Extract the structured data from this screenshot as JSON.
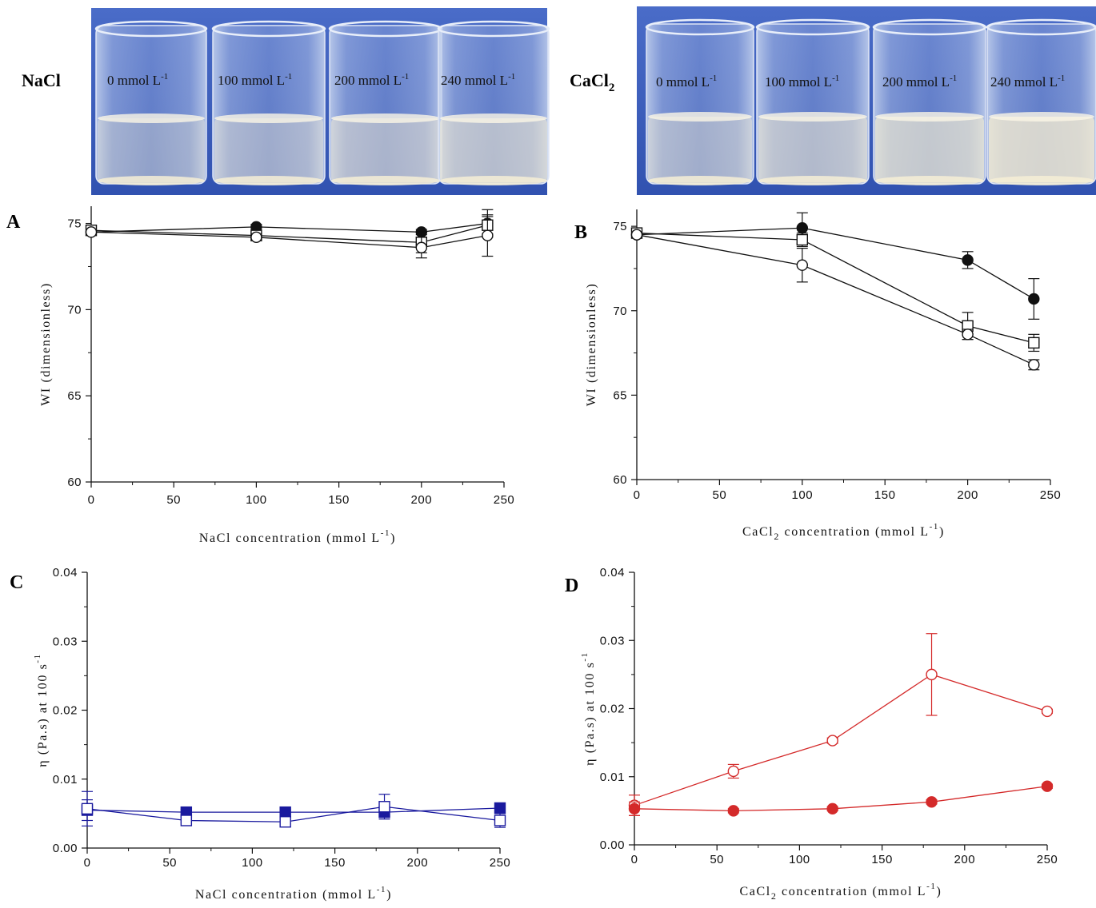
{
  "photos": [
    {
      "label": "NaCl",
      "beakers": [
        {
          "value": "0",
          "unit": "mmol L",
          "exp": "-1"
        },
        {
          "value": "100",
          "unit": "mmol L",
          "exp": "-1"
        },
        {
          "value": "200",
          "unit": "mmol L",
          "exp": "-1"
        },
        {
          "value": "240",
          "unit": "mmol L",
          "exp": "-1"
        }
      ]
    },
    {
      "label": "CaCl",
      "label_sub": "2",
      "beakers": [
        {
          "value": "0",
          "unit": "mmol L",
          "exp": "-1"
        },
        {
          "value": "100",
          "unit": "mmol L",
          "exp": "-1"
        },
        {
          "value": "200",
          "unit": "mmol L",
          "exp": "-1"
        },
        {
          "value": "240",
          "unit": "mmol L",
          "exp": "-1"
        }
      ]
    }
  ],
  "colors": {
    "background_photo": "#3d5fc0",
    "black": "#111111",
    "blue": "#1a1a9e",
    "red": "#d42a2a"
  },
  "chart_data": [
    {
      "panel": "A",
      "type": "line",
      "xlabel": "NaCl concentration (mmol L",
      "xlabel_sup": "-1",
      "xlabel_tail": ")",
      "ylabel": "WI (dimensionless)",
      "xlim": [
        0,
        250
      ],
      "ylim": [
        60,
        76
      ],
      "xticks": [
        0,
        50,
        100,
        150,
        200,
        250
      ],
      "yticks": [
        60,
        65,
        70,
        75
      ],
      "color": "black",
      "series": [
        {
          "marker": "filled-circle",
          "x": [
            0,
            100,
            200,
            240
          ],
          "y": [
            74.5,
            74.8,
            74.5,
            75.0
          ],
          "err": [
            0.15,
            0.15,
            0.15,
            0.8
          ]
        },
        {
          "marker": "open-square",
          "x": [
            0,
            100,
            200,
            240
          ],
          "y": [
            74.6,
            74.3,
            73.9,
            74.9
          ],
          "err": [
            0.15,
            0.2,
            0.6,
            0.5
          ]
        },
        {
          "marker": "open-circle",
          "x": [
            0,
            100,
            200,
            240
          ],
          "y": [
            74.5,
            74.2,
            73.6,
            74.3
          ],
          "err": [
            0.15,
            0.2,
            0.6,
            1.2
          ]
        }
      ]
    },
    {
      "panel": "B",
      "type": "line",
      "xlabel": "CaCl",
      "xlabel_sub": "2",
      "xlabel_rest": " concentration (mmol L",
      "xlabel_sup": "-1",
      "xlabel_tail": ")",
      "ylabel": "WI (dimensionless)",
      "xlim": [
        0,
        250
      ],
      "ylim": [
        60,
        76
      ],
      "xticks": [
        0,
        50,
        100,
        150,
        200,
        250
      ],
      "yticks": [
        60,
        65,
        70,
        75
      ],
      "color": "black",
      "series": [
        {
          "marker": "filled-circle",
          "x": [
            0,
            100,
            200,
            240
          ],
          "y": [
            74.5,
            74.9,
            73.0,
            70.7
          ],
          "err": [
            0.15,
            0.9,
            0.5,
            1.2
          ]
        },
        {
          "marker": "open-square",
          "x": [
            0,
            100,
            200,
            240
          ],
          "y": [
            74.6,
            74.2,
            69.1,
            68.1
          ],
          "err": [
            0.15,
            0.4,
            0.8,
            0.5
          ]
        },
        {
          "marker": "open-circle",
          "x": [
            0,
            100,
            200,
            240
          ],
          "y": [
            74.5,
            72.7,
            68.6,
            66.8
          ],
          "err": [
            0.15,
            1.0,
            0.3,
            0.3
          ]
        }
      ]
    },
    {
      "panel": "C",
      "type": "line",
      "xlabel": "NaCl concentration (mmol L",
      "xlabel_sup": "-1",
      "xlabel_tail": ")",
      "ylabel": "η (Pa.s) at 100 s",
      "ylabel_sup": "-1",
      "xlim": [
        0,
        250
      ],
      "ylim": [
        0,
        0.04
      ],
      "xticks": [
        0,
        50,
        100,
        150,
        200,
        250
      ],
      "yticks": [
        "0.00",
        "0.01",
        "0.02",
        "0.03",
        "0.04"
      ],
      "color": "blue",
      "series": [
        {
          "marker": "filled-square",
          "x": [
            0,
            60,
            120,
            180,
            250
          ],
          "y": [
            0.0055,
            0.0052,
            0.0052,
            0.0052,
            0.0058
          ],
          "err": [
            0.0015,
            0.0004,
            0.0004,
            0.0006,
            0.0004
          ]
        },
        {
          "marker": "open-square",
          "x": [
            0,
            60,
            120,
            180,
            250
          ],
          "y": [
            0.0057,
            0.004,
            0.0038,
            0.006,
            0.004
          ],
          "err": [
            0.0025,
            0.0003,
            0.0003,
            0.0018,
            0.001
          ]
        }
      ]
    },
    {
      "panel": "D",
      "type": "line",
      "xlabel": "CaCl",
      "xlabel_sub": "2",
      "xlabel_rest": " concentration (mmol L",
      "xlabel_sup": "-1",
      "xlabel_tail": ")",
      "ylabel": "η (Pa.s) at 100 s",
      "ylabel_sup": "-1",
      "xlim": [
        0,
        250
      ],
      "ylim": [
        0,
        0.04
      ],
      "xticks": [
        0,
        50,
        100,
        150,
        200,
        250
      ],
      "yticks": [
        "0.00",
        "0.01",
        "0.02",
        "0.03",
        "0.04"
      ],
      "color": "red",
      "series": [
        {
          "marker": "open-circle",
          "x": [
            0,
            60,
            120,
            180,
            250
          ],
          "y": [
            0.0058,
            0.0108,
            0.0153,
            0.025,
            0.0196
          ],
          "err": [
            0.0015,
            0.001,
            0.0004,
            0.006,
            0.0003
          ]
        },
        {
          "marker": "filled-circle",
          "x": [
            0,
            60,
            120,
            180,
            250
          ],
          "y": [
            0.0053,
            0.005,
            0.0053,
            0.0063,
            0.0086
          ],
          "err": [
            0.001,
            0.0003,
            0.0003,
            0.0003,
            0.0003
          ]
        }
      ]
    }
  ]
}
